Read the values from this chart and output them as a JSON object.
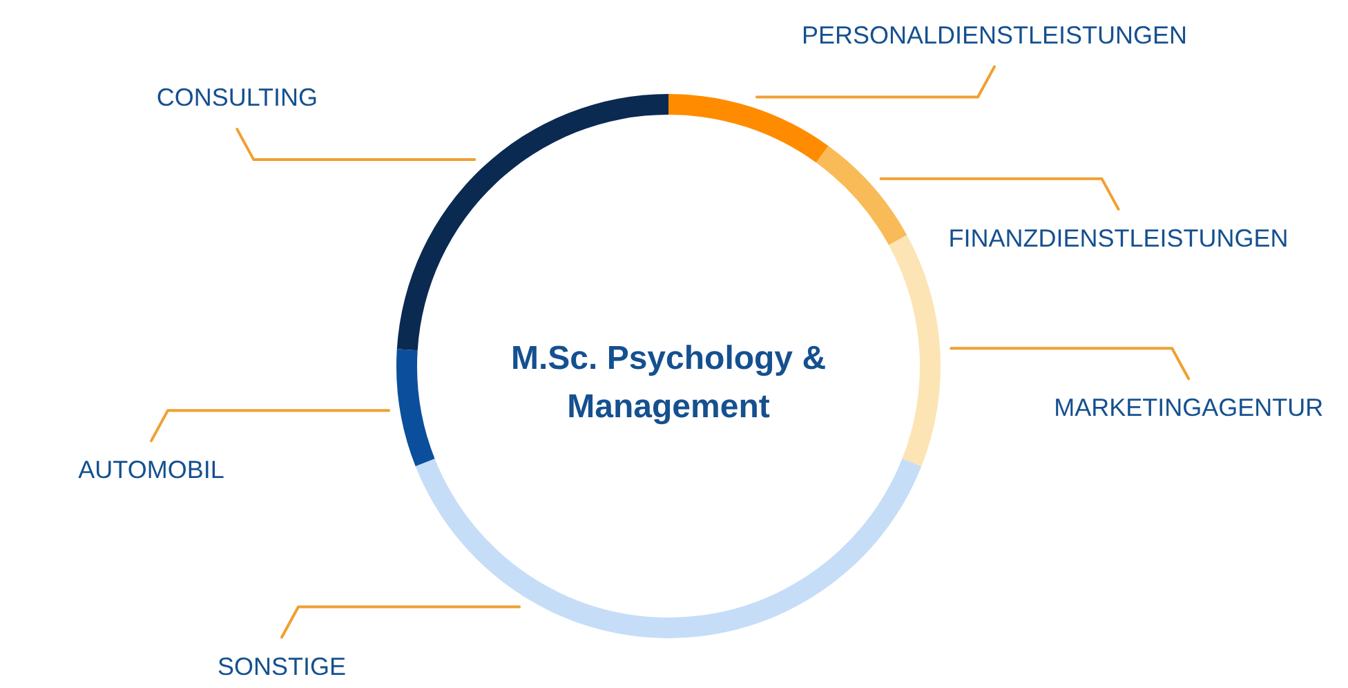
{
  "chart_data": {
    "type": "donut",
    "title": "M.Sc. Psychology & Management",
    "categories": [
      "PERSONALDIENSTLEISTUNGEN",
      "FINANZDIENSTLEISTUNGEN",
      "MARKETINGAGENTUR",
      "SONSTIGE",
      "AUTOMOBIL",
      "CONSULTING"
    ],
    "values": [
      10,
      7,
      14,
      38,
      7,
      24
    ],
    "colors": [
      "#ff8c00",
      "#f8bb57",
      "#fde4b5",
      "#c6ddf8",
      "#0b4f9c",
      "#0a2a52"
    ]
  }
}
